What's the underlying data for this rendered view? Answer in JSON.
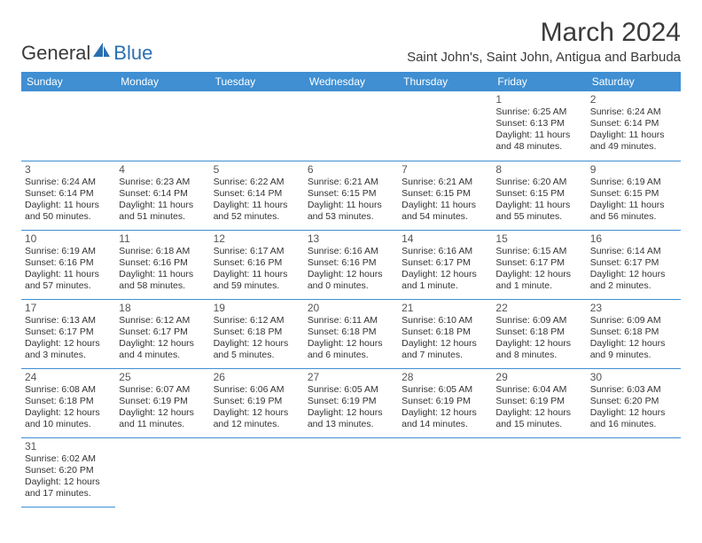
{
  "logo": {
    "part1": "General",
    "part2": "Blue"
  },
  "title": "March 2024",
  "location": "Saint John's, Saint John, Antigua and Barbuda",
  "colors": {
    "header_bg": "#3f8fd2",
    "header_text": "#ffffff",
    "logo_gray": "#3a3a3a",
    "logo_blue": "#2b6fb0",
    "text": "#333333",
    "border": "#3f8fd2"
  },
  "day_names": [
    "Sunday",
    "Monday",
    "Tuesday",
    "Wednesday",
    "Thursday",
    "Friday",
    "Saturday"
  ],
  "weeks": [
    [
      null,
      null,
      null,
      null,
      null,
      {
        "n": "1",
        "sunrise": "6:25 AM",
        "sunset": "6:13 PM",
        "dl": "11 hours and 48 minutes."
      },
      {
        "n": "2",
        "sunrise": "6:24 AM",
        "sunset": "6:14 PM",
        "dl": "11 hours and 49 minutes."
      }
    ],
    [
      {
        "n": "3",
        "sunrise": "6:24 AM",
        "sunset": "6:14 PM",
        "dl": "11 hours and 50 minutes."
      },
      {
        "n": "4",
        "sunrise": "6:23 AM",
        "sunset": "6:14 PM",
        "dl": "11 hours and 51 minutes."
      },
      {
        "n": "5",
        "sunrise": "6:22 AM",
        "sunset": "6:14 PM",
        "dl": "11 hours and 52 minutes."
      },
      {
        "n": "6",
        "sunrise": "6:21 AM",
        "sunset": "6:15 PM",
        "dl": "11 hours and 53 minutes."
      },
      {
        "n": "7",
        "sunrise": "6:21 AM",
        "sunset": "6:15 PM",
        "dl": "11 hours and 54 minutes."
      },
      {
        "n": "8",
        "sunrise": "6:20 AM",
        "sunset": "6:15 PM",
        "dl": "11 hours and 55 minutes."
      },
      {
        "n": "9",
        "sunrise": "6:19 AM",
        "sunset": "6:15 PM",
        "dl": "11 hours and 56 minutes."
      }
    ],
    [
      {
        "n": "10",
        "sunrise": "6:19 AM",
        "sunset": "6:16 PM",
        "dl": "11 hours and 57 minutes."
      },
      {
        "n": "11",
        "sunrise": "6:18 AM",
        "sunset": "6:16 PM",
        "dl": "11 hours and 58 minutes."
      },
      {
        "n": "12",
        "sunrise": "6:17 AM",
        "sunset": "6:16 PM",
        "dl": "11 hours and 59 minutes."
      },
      {
        "n": "13",
        "sunrise": "6:16 AM",
        "sunset": "6:16 PM",
        "dl": "12 hours and 0 minutes."
      },
      {
        "n": "14",
        "sunrise": "6:16 AM",
        "sunset": "6:17 PM",
        "dl": "12 hours and 1 minute."
      },
      {
        "n": "15",
        "sunrise": "6:15 AM",
        "sunset": "6:17 PM",
        "dl": "12 hours and 1 minute."
      },
      {
        "n": "16",
        "sunrise": "6:14 AM",
        "sunset": "6:17 PM",
        "dl": "12 hours and 2 minutes."
      }
    ],
    [
      {
        "n": "17",
        "sunrise": "6:13 AM",
        "sunset": "6:17 PM",
        "dl": "12 hours and 3 minutes."
      },
      {
        "n": "18",
        "sunrise": "6:12 AM",
        "sunset": "6:17 PM",
        "dl": "12 hours and 4 minutes."
      },
      {
        "n": "19",
        "sunrise": "6:12 AM",
        "sunset": "6:18 PM",
        "dl": "12 hours and 5 minutes."
      },
      {
        "n": "20",
        "sunrise": "6:11 AM",
        "sunset": "6:18 PM",
        "dl": "12 hours and 6 minutes."
      },
      {
        "n": "21",
        "sunrise": "6:10 AM",
        "sunset": "6:18 PM",
        "dl": "12 hours and 7 minutes."
      },
      {
        "n": "22",
        "sunrise": "6:09 AM",
        "sunset": "6:18 PM",
        "dl": "12 hours and 8 minutes."
      },
      {
        "n": "23",
        "sunrise": "6:09 AM",
        "sunset": "6:18 PM",
        "dl": "12 hours and 9 minutes."
      }
    ],
    [
      {
        "n": "24",
        "sunrise": "6:08 AM",
        "sunset": "6:18 PM",
        "dl": "12 hours and 10 minutes."
      },
      {
        "n": "25",
        "sunrise": "6:07 AM",
        "sunset": "6:19 PM",
        "dl": "12 hours and 11 minutes."
      },
      {
        "n": "26",
        "sunrise": "6:06 AM",
        "sunset": "6:19 PM",
        "dl": "12 hours and 12 minutes."
      },
      {
        "n": "27",
        "sunrise": "6:05 AM",
        "sunset": "6:19 PM",
        "dl": "12 hours and 13 minutes."
      },
      {
        "n": "28",
        "sunrise": "6:05 AM",
        "sunset": "6:19 PM",
        "dl": "12 hours and 14 minutes."
      },
      {
        "n": "29",
        "sunrise": "6:04 AM",
        "sunset": "6:19 PM",
        "dl": "12 hours and 15 minutes."
      },
      {
        "n": "30",
        "sunrise": "6:03 AM",
        "sunset": "6:20 PM",
        "dl": "12 hours and 16 minutes."
      }
    ],
    [
      {
        "n": "31",
        "sunrise": "6:02 AM",
        "sunset": "6:20 PM",
        "dl": "12 hours and 17 minutes."
      },
      null,
      null,
      null,
      null,
      null,
      null
    ]
  ]
}
